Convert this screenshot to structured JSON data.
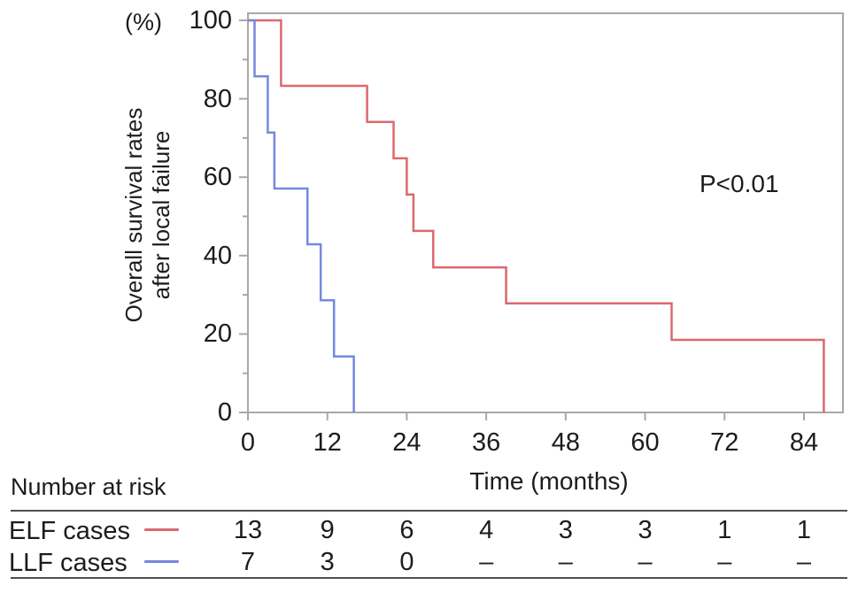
{
  "figure": {
    "percent_label": "(%)",
    "y_axis_title_line1": "Overall survival rates",
    "y_axis_title_line2": "after local failure",
    "x_axis_title": "Time (months)",
    "p_value_label": "P<0.01"
  },
  "colors": {
    "elf_red": "#dd686d",
    "llf_blue": "#7489de",
    "axis_gray": "#a8a8a8",
    "rule_gray": "#4f4f4f",
    "text": "#1c1c1c"
  },
  "chart_data": {
    "type": "line",
    "subtype": "kaplan-meier-step",
    "title": "",
    "xlabel": "Time (months)",
    "ylabel": "Overall survival rates after local failure (%)",
    "xlim": [
      0,
      90
    ],
    "ylim": [
      0,
      100
    ],
    "x_ticks": [
      0,
      12,
      24,
      36,
      48,
      60,
      72,
      84
    ],
    "y_ticks": [
      100,
      80,
      60,
      40,
      20,
      0
    ],
    "y_minor_ticks": [
      90,
      70,
      50,
      30,
      10
    ],
    "grid": false,
    "legend_position": "none",
    "annotation": "P<0.01",
    "series": [
      {
        "name": "ELF cases",
        "color": "#dd686d",
        "start": [
          0,
          100
        ],
        "steps": [
          [
            5,
            83.3
          ],
          [
            18,
            74.1
          ],
          [
            22,
            64.8
          ],
          [
            24,
            55.6
          ],
          [
            25,
            46.3
          ],
          [
            28,
            37.0
          ],
          [
            39,
            27.8
          ],
          [
            64,
            18.5
          ],
          [
            87,
            0
          ]
        ]
      },
      {
        "name": "LLF cases",
        "color": "#7489de",
        "start": [
          0,
          100
        ],
        "steps": [
          [
            1,
            85.7
          ],
          [
            3,
            71.4
          ],
          [
            4,
            57.1
          ],
          [
            9,
            42.9
          ],
          [
            11,
            28.6
          ],
          [
            13,
            14.3
          ],
          [
            16,
            0
          ]
        ]
      }
    ]
  },
  "risk_table": {
    "title": "Number at risk",
    "time_points": [
      0,
      12,
      24,
      36,
      48,
      60,
      72,
      84
    ],
    "rows": [
      {
        "label": "ELF cases",
        "color": "#dd686d",
        "counts": [
          "13",
          "9",
          "6",
          "4",
          "3",
          "3",
          "1",
          "1"
        ]
      },
      {
        "label": "LLF cases",
        "color": "#7489de",
        "counts": [
          "7",
          "3",
          "0",
          "–",
          "–",
          "–",
          "–",
          "–"
        ]
      }
    ]
  }
}
